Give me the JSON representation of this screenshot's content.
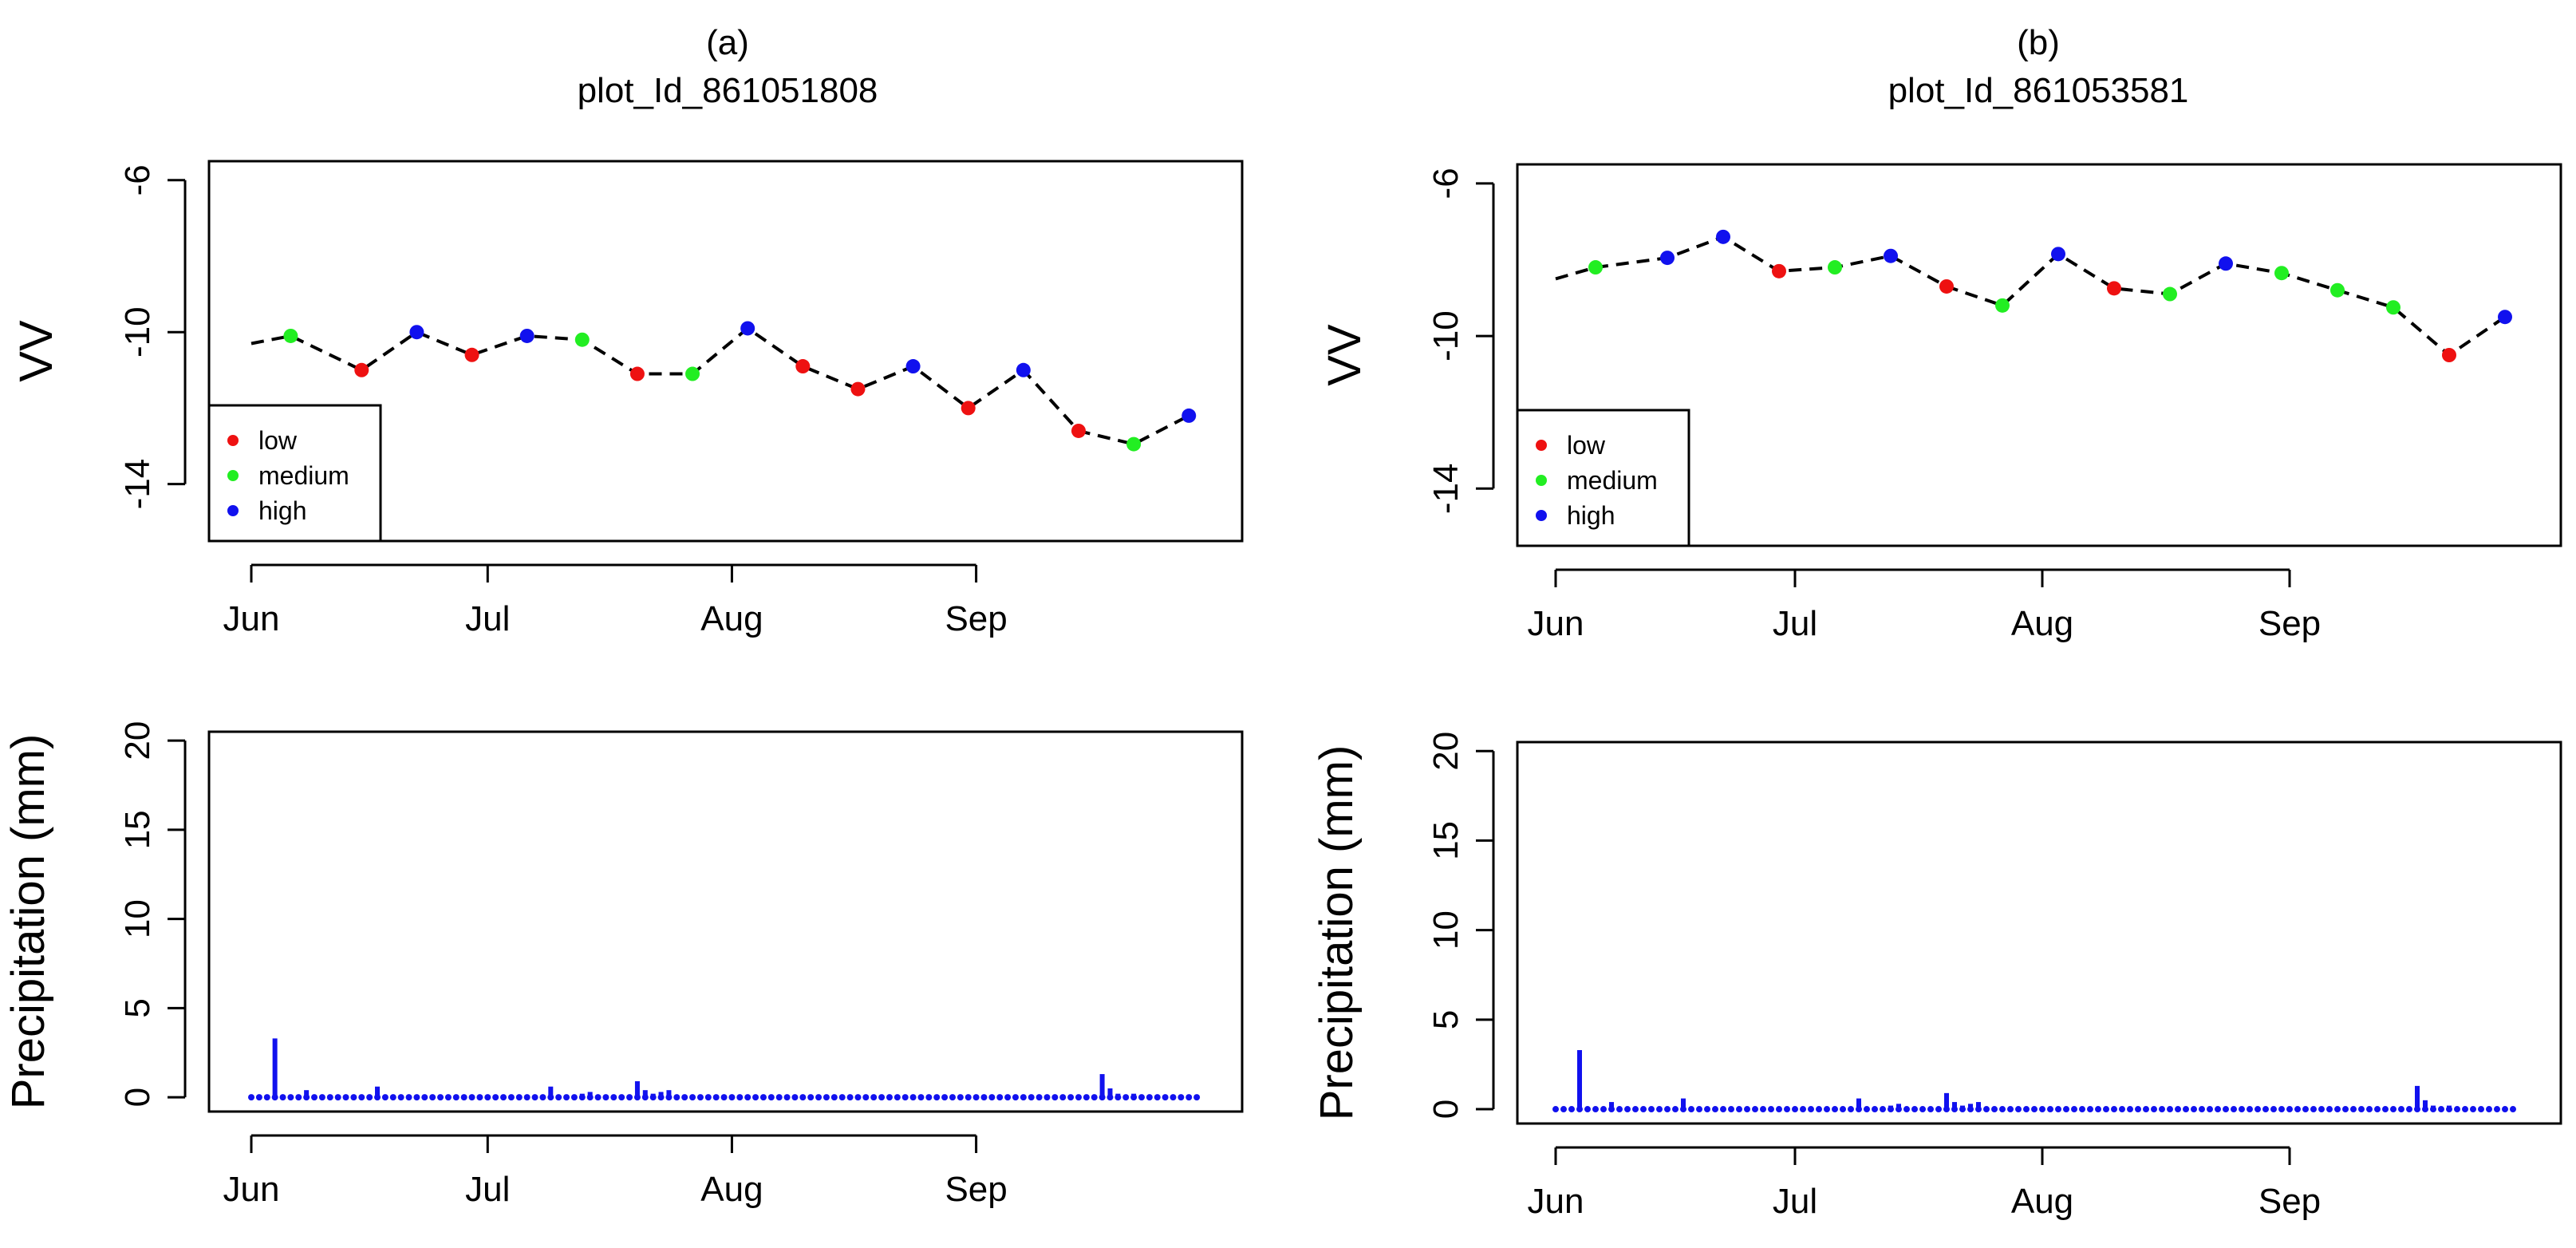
{
  "chart_data": [
    {
      "type": "line",
      "panel": "a",
      "title": "(a)",
      "subtitle": "plot_Id_861051808",
      "xlabel": "",
      "ylabel": "VV",
      "xlim": [
        0,
        121
      ],
      "ylim": [
        -15.5,
        -5.5
      ],
      "yticks": [
        -6,
        -10,
        -14
      ],
      "ytick_labels": [
        "-6",
        "-10",
        "-14"
      ],
      "xticks": [
        0,
        30,
        61,
        92
      ],
      "xtick_labels": [
        "Jun",
        "Jul",
        "Aug",
        "Sep"
      ],
      "line_style": "dashed",
      "series": [
        {
          "name": "VV",
          "x": [
            0,
            5,
            14,
            21,
            28,
            35,
            42,
            49,
            56,
            63,
            70,
            77,
            84,
            91,
            98,
            105,
            112,
            119
          ],
          "y": [
            -10.3,
            -10.1,
            -11.0,
            -10.0,
            -10.6,
            -10.1,
            -10.2,
            -11.1,
            -11.1,
            -9.9,
            -10.9,
            -11.5,
            -10.9,
            -12.0,
            -11.0,
            -12.6,
            -12.95,
            -12.2
          ],
          "class": [
            "none",
            "medium",
            "low",
            "high",
            "low",
            "high",
            "medium",
            "low",
            "medium",
            "high",
            "low",
            "low",
            "high",
            "low",
            "high",
            "low",
            "medium",
            "high"
          ]
        }
      ],
      "legend": {
        "position": "bottom-left",
        "entries": [
          {
            "label": "low",
            "color": "#ee1111"
          },
          {
            "label": "medium",
            "color": "#22ee22"
          },
          {
            "label": "high",
            "color": "#1111ee"
          }
        ]
      }
    },
    {
      "type": "line",
      "panel": "b",
      "title": "(b)",
      "subtitle": "plot_Id_861053581",
      "xlabel": "",
      "ylabel": "VV",
      "xlim": [
        0,
        121
      ],
      "ylim": [
        -15.5,
        -5.5
      ],
      "yticks": [
        -6,
        -10,
        -14
      ],
      "ytick_labels": [
        "-6",
        "-10",
        "-14"
      ],
      "xticks": [
        0,
        30,
        61,
        92
      ],
      "xtick_labels": [
        "Jun",
        "Jul",
        "Aug",
        "Sep"
      ],
      "line_style": "dashed",
      "series": [
        {
          "name": "VV",
          "x": [
            0,
            5,
            14,
            21,
            28,
            35,
            42,
            49,
            56,
            63,
            70,
            77,
            84,
            91,
            98,
            105,
            112,
            119
          ],
          "y": [
            -8.5,
            -8.2,
            -7.95,
            -7.4,
            -8.3,
            -8.2,
            -7.9,
            -8.7,
            -9.2,
            -7.85,
            -8.75,
            -8.9,
            -8.1,
            -8.35,
            -8.8,
            -9.25,
            -10.5,
            -9.5
          ],
          "class": [
            "none",
            "medium",
            "high",
            "high",
            "low",
            "medium",
            "high",
            "low",
            "medium",
            "high",
            "low",
            "medium",
            "high",
            "medium",
            "medium",
            "medium",
            "low",
            "high"
          ]
        }
      ],
      "legend": {
        "position": "bottom-left",
        "entries": [
          {
            "label": "low",
            "color": "#ee1111"
          },
          {
            "label": "medium",
            "color": "#22ee22"
          },
          {
            "label": "high",
            "color": "#1111ee"
          }
        ]
      }
    },
    {
      "type": "bar",
      "panel": "a-precip",
      "title": "",
      "xlabel": "",
      "ylabel": "Precipitation (mm)",
      "xlim": [
        0,
        121
      ],
      "ylim": [
        -0.8,
        20.5
      ],
      "yticks": [
        0,
        5,
        10,
        15,
        20
      ],
      "ytick_labels": [
        "0",
        "5",
        "10",
        "15",
        "20"
      ],
      "xticks": [
        0,
        30,
        61,
        92
      ],
      "xtick_labels": [
        "Jun",
        "Jul",
        "Aug",
        "Sep"
      ],
      "days": 121,
      "rain_days": [
        3,
        7,
        16,
        37,
        38,
        42,
        43,
        44,
        49,
        50,
        51,
        52,
        53,
        91,
        108,
        109,
        110,
        111,
        112
      ],
      "rain_values": [
        3.3,
        0.4,
        0.6,
        0.1,
        0.6,
        0.2,
        0.3,
        0.1,
        0.9,
        0.4,
        0.2,
        0.3,
        0.4,
        0.1,
        1.3,
        0.5,
        0.2,
        0.1,
        0.2
      ],
      "bar_color": "#1111ee"
    },
    {
      "type": "bar",
      "panel": "b-precip",
      "title": "",
      "xlabel": "",
      "ylabel": "Precipitation (mm)",
      "xlim": [
        0,
        121
      ],
      "ylim": [
        -0.8,
        20.5
      ],
      "yticks": [
        0,
        5,
        10,
        15,
        20
      ],
      "ytick_labels": [
        "0",
        "5",
        "10",
        "15",
        "20"
      ],
      "xticks": [
        0,
        30,
        61,
        92
      ],
      "xtick_labels": [
        "Jun",
        "Jul",
        "Aug",
        "Sep"
      ],
      "days": 121,
      "rain_days": [
        3,
        7,
        16,
        37,
        38,
        42,
        43,
        44,
        49,
        50,
        51,
        52,
        53,
        91,
        108,
        109,
        110,
        111,
        112
      ],
      "rain_values": [
        3.3,
        0.4,
        0.6,
        0.1,
        0.6,
        0.2,
        0.3,
        0.1,
        0.9,
        0.4,
        0.2,
        0.3,
        0.4,
        0.1,
        1.3,
        0.5,
        0.2,
        0.1,
        0.2
      ],
      "bar_color": "#1111ee"
    }
  ],
  "colors": {
    "low": "#ee1111",
    "medium": "#22ee22",
    "high": "#1111ee",
    "line": "#000000",
    "precip": "#1111ee"
  }
}
